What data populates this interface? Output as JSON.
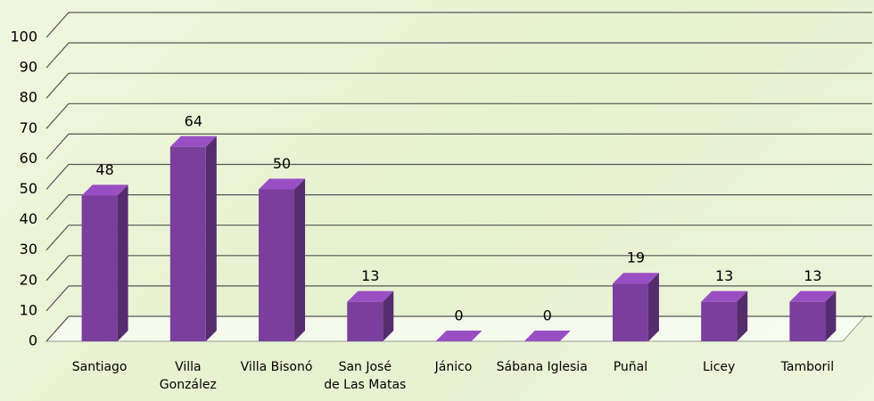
{
  "chart_data": {
    "type": "bar3d",
    "categories": [
      "Santiago",
      "Villa\nGonzález",
      "Villa Bisonó",
      "San José\nde Las Matas",
      "Jánico",
      "Sábana Iglesia",
      "Puñal",
      "Licey",
      "Tamboril"
    ],
    "values": [
      48,
      64,
      50,
      13,
      0,
      0,
      19,
      13,
      13
    ],
    "color": "#7a3f9d",
    "ylim": [
      0,
      100
    ],
    "yticks": [
      0,
      10,
      20,
      30,
      40,
      50,
      60,
      70,
      80,
      90,
      100
    ],
    "grid": true
  }
}
